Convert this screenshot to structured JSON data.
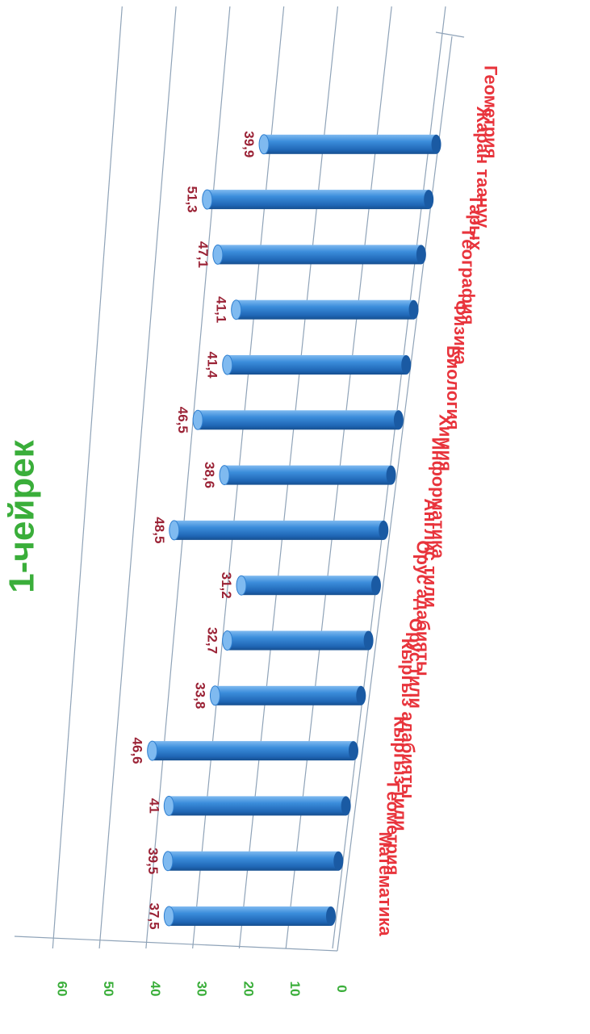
{
  "chart_data": {
    "type": "bar",
    "title": "1-чейрек",
    "categories": [
      "Математика",
      "Геометрия",
      "Кыргыз тили",
      "Кыргыз адабияты",
      "Орус тили",
      "Орус адабияты",
      "Англис тили",
      "Информатика",
      "Химия",
      "Биология",
      "Физика",
      "География",
      "Тарых",
      "Жаран таануу",
      "Геометрия"
    ],
    "values": [
      37.5,
      39.5,
      41,
      46.6,
      33.8,
      32.7,
      31.2,
      48.5,
      38.6,
      46.5,
      41.4,
      41.1,
      47.1,
      51.3,
      39.9
    ],
    "value_labels": [
      "37,5",
      "39,5",
      "41",
      "46,6",
      "33,8",
      "32,7",
      "31,2",
      "48,5",
      "38,6",
      "46,5",
      "41,4",
      "41,1",
      "47,1",
      "51,3",
      "39,9"
    ],
    "ylim": [
      0,
      60
    ],
    "yticks": [
      "0",
      "10",
      "20",
      "30",
      "40",
      "50",
      "60"
    ],
    "grid": true,
    "colors": {
      "bar": "#2f7fd0",
      "bar_dark": "#1a5aa3",
      "bar_light": "#7fbaf0",
      "title": "#3aae3a",
      "tick": "#3aae3a",
      "category": "#e8343c",
      "value_label": "#9b2336",
      "grid": "#8fa3b8"
    }
  }
}
